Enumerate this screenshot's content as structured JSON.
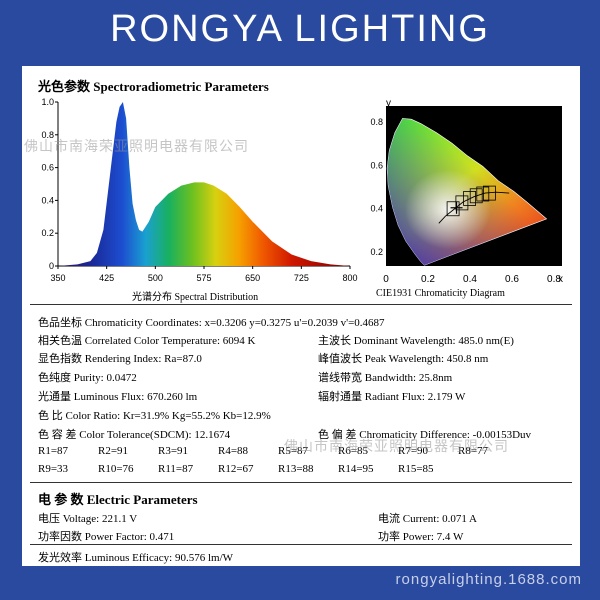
{
  "brand": "RONGYA LIGHTING",
  "watermark": "佛山市南海荣亚照明电器有限公司",
  "footer_site": "rongyalighting.1688.com",
  "spectro": {
    "heading": "光色参数 Spectroradiometric Parameters",
    "spectrum_caption": "光谱分布 Spectral Distribution",
    "cie_caption": "CIE1931 Chromaticity Diagram"
  },
  "chart_data": [
    {
      "type": "area",
      "x_ticks": [
        "350",
        "425",
        "500",
        "575",
        "650",
        "725",
        "800"
      ],
      "y_ticks": [
        "1.0",
        "0.8",
        "0.6",
        "0.4",
        "0.2",
        "0"
      ],
      "xlim": [
        350,
        800
      ],
      "ylim": [
        0,
        1.0
      ],
      "x": [
        350,
        380,
        400,
        410,
        420,
        430,
        440,
        445,
        450,
        455,
        460,
        465,
        470,
        475,
        480,
        490,
        500,
        520,
        540,
        560,
        575,
        590,
        610,
        630,
        650,
        680,
        710,
        740,
        770,
        800
      ],
      "y": [
        0.0,
        0.01,
        0.03,
        0.08,
        0.22,
        0.55,
        0.88,
        0.97,
        1.0,
        0.9,
        0.6,
        0.38,
        0.28,
        0.22,
        0.21,
        0.27,
        0.36,
        0.44,
        0.49,
        0.51,
        0.51,
        0.49,
        0.44,
        0.36,
        0.27,
        0.15,
        0.07,
        0.03,
        0.01,
        0.0
      ]
    },
    {
      "type": "scatter",
      "x_ticks": [
        "0",
        "0.2",
        "0.4",
        "0.6",
        "0.8"
      ],
      "y_ticks": [
        "0.8",
        "0.6",
        "0.4",
        "0.2"
      ],
      "xlabel": "x",
      "ylabel": "y",
      "xlim": [
        0,
        0.8
      ],
      "ylim": [
        0,
        0.9
      ],
      "point": {
        "x": 0.3206,
        "y": 0.3275
      }
    }
  ],
  "params": {
    "chroma": "色品坐标 Chromaticity Coordinates: x=0.3206 y=0.3275 u'=0.2039 v'=0.4687",
    "cct": "相关色温 Correlated Color Temperature: 6094 K",
    "dominant": "主波长 Dominant Wavelength: 485.0 nm(E)",
    "ra": "显色指数 Rendering Index: Ra=87.0",
    "peak": "峰值波长 Peak Wavelength: 450.8 nm",
    "purity": "色纯度 Purity: 0.0472",
    "bandwidth": "谱线带宽 Bandwidth: 25.8nm",
    "flux": "光通量 Luminous Flux: 670.260 lm",
    "radiant": "辐射通量 Radiant Flux: 2.179 W",
    "ratio": "色 比 Color Ratio:   Kr=31.9%  Kg=55.2%  Kb=12.9%",
    "tolerance": "色 容 差 Color Tolerance(SDCM): 12.1674",
    "duv": "色 偏 差 Chromaticity Difference: -0.00153Duv",
    "r_row1": [
      "R1=87",
      "R2=91",
      "R3=91",
      "R4=88",
      "R5=87",
      "R6=85",
      "R7=90",
      "R8=77"
    ],
    "r_row2": [
      "R9=33",
      "R10=76",
      "R11=87",
      "R12=67",
      "R13=88",
      "R14=95",
      "R15=85"
    ]
  },
  "electric": {
    "heading": "电 参 数 Electric Parameters",
    "voltage": "电压 Voltage: 221.1 V",
    "current": "电流 Current: 0.071 A",
    "pf": "功率因数 Power Factor: 0.471",
    "power": "功率 Power: 7.4 W",
    "efficacy": "发光效率 Luminous Efficacy: 90.576 lm/W"
  }
}
